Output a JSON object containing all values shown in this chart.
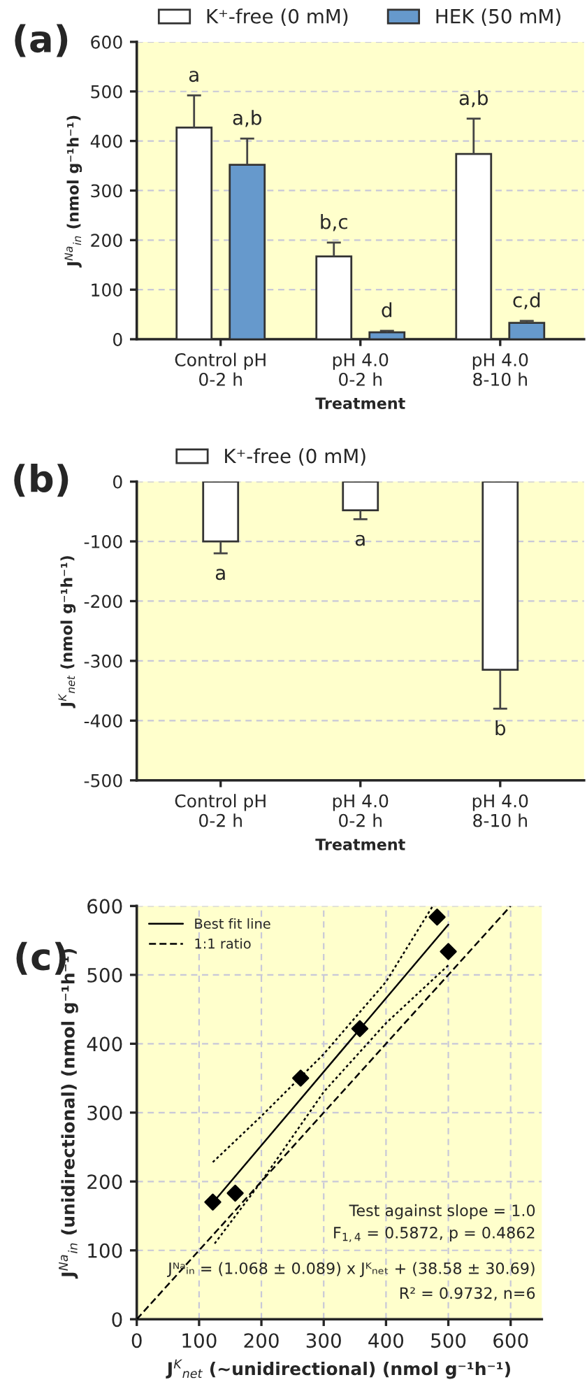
{
  "chart_data": [
    {
      "type": "bar",
      "title": "(a)",
      "xlabel": "Treatment",
      "ylabel": "J$^{Na}$$_{in}$ (nmol g⁻¹h⁻¹)",
      "categories": [
        "Control pH\n0-2 h",
        "pH 4.0\n0-2 h",
        "pH 4.0\n8-10 h"
      ],
      "series": [
        {
          "name": "K⁺-free (0 mM)",
          "color": "#ffffff",
          "values": [
            427,
            167,
            374
          ],
          "errors": [
            [
              427,
              492
            ],
            [
              167,
              195
            ],
            [
              374,
              445
            ]
          ]
        },
        {
          "name": "HEK (50 mM)",
          "color": "#6699cc",
          "values": [
            352,
            14,
            33
          ],
          "errors": [
            [
              352,
              405
            ],
            [
              14,
              17
            ],
            [
              33,
              37
            ]
          ]
        }
      ],
      "ylim": [
        0,
        600
      ],
      "yticks": [
        0,
        100,
        200,
        300,
        400,
        500,
        600
      ],
      "grid": "y",
      "legend": "top",
      "annotations": [
        "a",
        "a,b",
        "b,c",
        "d",
        "a,b",
        "c,d"
      ]
    },
    {
      "type": "bar",
      "title": "(b)",
      "xlabel": "Treatment",
      "ylabel": "J$^{K}$$_{net}$ (nmol g⁻¹h⁻¹)",
      "categories": [
        "Control pH\n0-2 h",
        "pH 4.0\n0-2 h",
        "pH 4.0\n8-10 h"
      ],
      "series": [
        {
          "name": "K⁺-free (0 mM)",
          "color": "#ffffff",
          "values": [
            -100,
            -48,
            -315
          ],
          "errors": [
            [
              -120,
              -100
            ],
            [
              -63,
              -48
            ],
            [
              -380,
              -315
            ]
          ]
        }
      ],
      "ylim": [
        -500,
        0
      ],
      "yticks": [
        -500,
        -400,
        -300,
        -200,
        -100,
        0
      ],
      "grid": "y",
      "legend": "top left",
      "annotations": [
        "a",
        "a",
        "b"
      ]
    },
    {
      "type": "scatter",
      "title": "(c)",
      "xlabel": "J$^{K}$$_{net}$ (~unidirectional) (nmol g⁻¹h⁻¹)",
      "ylabel": "J$^{Na}$$_{in}$ (unidirectional) (nmol g⁻¹h⁻¹)",
      "series": [
        {
          "type": "scatter",
          "color": "#000000",
          "marker": "diamond",
          "x": [
            122,
            158,
            263,
            358,
            482,
            500
          ],
          "values": [
            170,
            183,
            350,
            422,
            584,
            534
          ]
        },
        {
          "type": "line",
          "name": "Best fit line",
          "color": "#000000",
          "line_style": "solid",
          "x": [
            122,
            500
          ],
          "values": [
            169,
            573
          ]
        },
        {
          "type": "line",
          "name": "1:1 ratio",
          "color": "#000000",
          "line_style": "dashed",
          "x": [
            0,
            600
          ],
          "values": [
            0,
            600
          ]
        },
        {
          "type": "line",
          "color": "#000000",
          "line_style": "dotted",
          "x": [
            122,
            200,
            300,
            400,
            475
          ],
          "values": [
            228,
            295,
            385,
            490,
            600
          ]
        },
        {
          "type": "line",
          "color": "#000000",
          "line_style": "dotted",
          "x": [
            125,
            200,
            300,
            400,
            500
          ],
          "values": [
            110,
            200,
            330,
            430,
            514
          ]
        }
      ],
      "xlim": [
        0,
        650
      ],
      "xticks": [
        0,
        100,
        200,
        300,
        400,
        500,
        600
      ],
      "ylim": [
        0,
        600
      ],
      "yticks": [
        0,
        100,
        200,
        300,
        400,
        500,
        600
      ],
      "grid": true,
      "legend": "top left",
      "annotations": [
        "Test against slope = 1.0",
        "F$_{1,4}$ = 0.5872, p = 0.4862",
        "Jᴺᵃᵢₙ = (1.068 ± 0.089) x Jᴷₙₑₜ + (38.58 ± 30.69)",
        "R² = 0.9732, n=6"
      ]
    }
  ]
}
